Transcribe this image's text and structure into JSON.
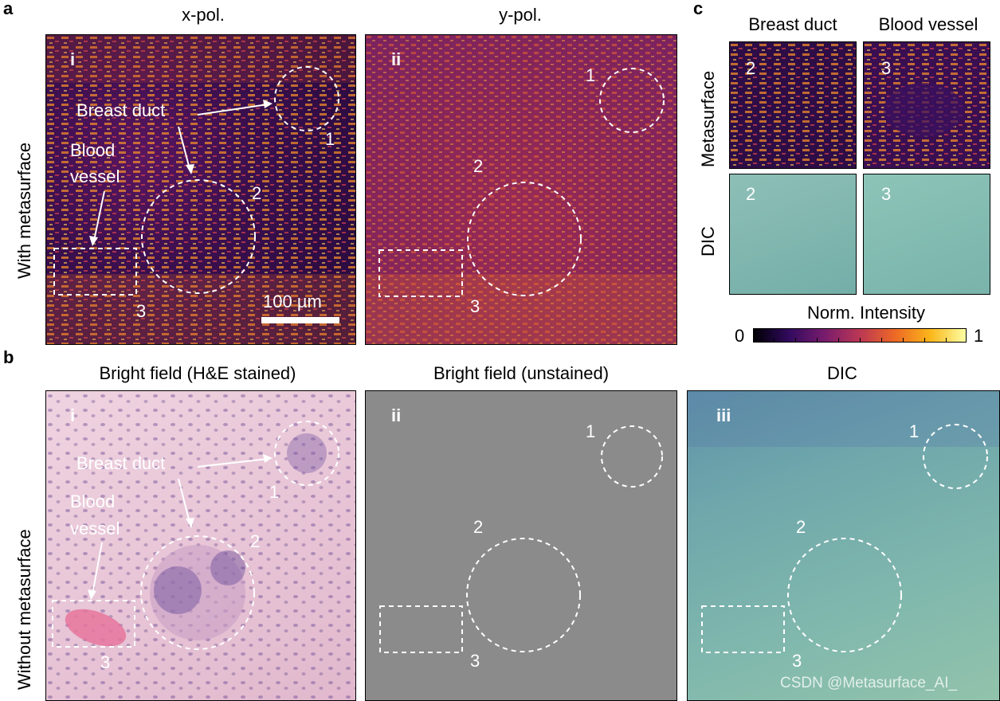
{
  "panel_a": {
    "label": "a",
    "row_label": "With metasurface",
    "col1_title": "x-pol.",
    "col2_title": "y-pol.",
    "sub_i": "i",
    "sub_ii": "ii",
    "breast_duct": "Breast duct",
    "blood_vessel_line1": "Blood",
    "blood_vessel_line2": "vessel",
    "region1": "1",
    "region2": "2",
    "region3": "3",
    "scale_bar": "100 µm"
  },
  "panel_b": {
    "label": "b",
    "row_label": "Without metasurface",
    "col1_title": "Bright field (H&E stained)",
    "col2_title": "Bright field (unstained)",
    "col3_title": "DIC",
    "sub_i": "i",
    "sub_ii": "ii",
    "sub_iii": "iii",
    "breast_duct": "Breast duct",
    "blood_vessel_line1": "Blood",
    "blood_vessel_line2": "vessel",
    "region1": "1",
    "region2": "2",
    "region3": "3"
  },
  "panel_c": {
    "label": "c",
    "col1_title": "Breast duct",
    "col2_title": "Blood vessel",
    "row1_label": "Metasurface",
    "row2_label": "DIC",
    "tile_2": "2",
    "tile_3": "3"
  },
  "colorbar": {
    "title": "Norm. Intensity",
    "min_label": "0",
    "max_label": "1",
    "colormap": "inferno"
  },
  "watermark": "CSDN @Metasurface_AI_",
  "colors": {
    "heat_dark": "#2a0a45",
    "heat_mid": "#a0224f",
    "heat_bright": "#f6a124",
    "he_pink": "#e6bfd2",
    "unstained_gray": "#8c8c8c",
    "dic_teal": "#7ab0ad"
  }
}
